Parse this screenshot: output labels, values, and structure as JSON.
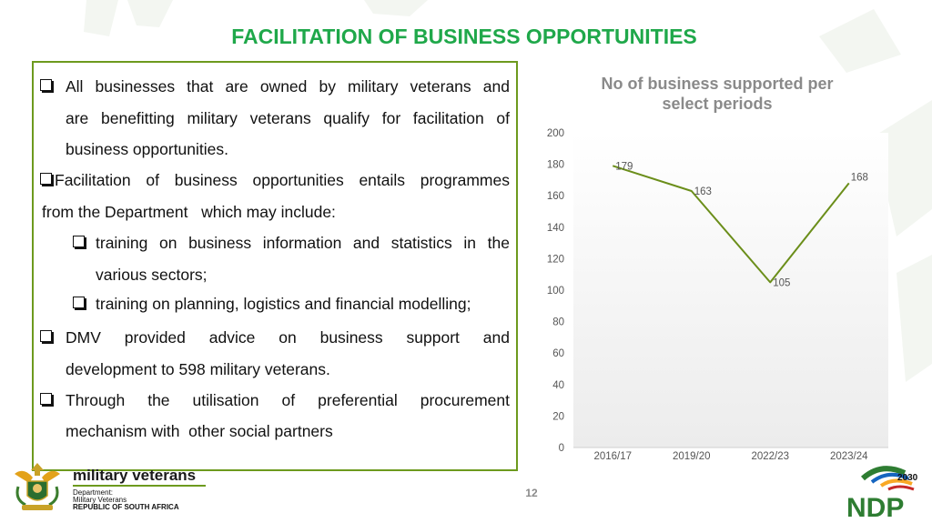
{
  "slide": {
    "title": "FACILITATION OF BUSINESS OPPORTUNITIES",
    "page_number": "12"
  },
  "content": {
    "bullet1": {
      "line1_words": [
        "All",
        "businesses",
        "that",
        "are",
        "owned",
        "by",
        "military",
        "veterans",
        "and"
      ],
      "line2_words": [
        "are",
        "benefitting",
        "military",
        "veterans",
        "qualify",
        "for",
        "facilitation",
        "of"
      ],
      "line3": "business opportunities."
    },
    "bullet2": {
      "line1_words": [
        "Facilitation",
        "of",
        "business",
        "opportunities",
        "entails",
        "programmes"
      ],
      "line2": "from the Department   which may include:",
      "sub1": {
        "line1_words": [
          "training",
          "on",
          "business",
          "information",
          "and",
          "statistics",
          "in",
          "the"
        ],
        "line2": "various sectors;"
      },
      "sub2": "training on planning, logistics and financial modelling;"
    },
    "bullet3": {
      "line1_words": [
        "DMV",
        "provided",
        "advice",
        "on",
        "business",
        "support",
        "and"
      ],
      "line2": "development to 598 military veterans."
    },
    "bullet4": {
      "line1_words": [
        "Through",
        "the",
        "utilisation",
        "of",
        "preferential",
        "procurement"
      ],
      "line2": "mechanism with  other social partners"
    }
  },
  "logos": {
    "left": {
      "name": "military veterans",
      "dept_line1": "Department:",
      "dept_line2": "Military Veterans",
      "dept_line3": "REPUBLIC OF SOUTH AFRICA"
    },
    "right": {
      "year": "2030",
      "name": "NDP"
    }
  },
  "colors": {
    "title_green": "#1fa84a",
    "border_olive": "#6d9a1e",
    "line_olive": "#6b8e1a",
    "chart_grey": "#8a8a8a"
  },
  "chart_data": {
    "type": "line",
    "title_line1": "No of business supported per",
    "title_line2": "select periods",
    "categories": [
      "2016/17",
      "2019/20",
      "2022/23",
      "2023/24"
    ],
    "values": [
      179,
      163,
      105,
      168
    ],
    "ylim": [
      0,
      200
    ],
    "yticks": [
      0,
      20,
      40,
      60,
      80,
      100,
      120,
      140,
      160,
      180,
      200
    ],
    "grid": false,
    "legend": "none",
    "data_labels": true
  }
}
